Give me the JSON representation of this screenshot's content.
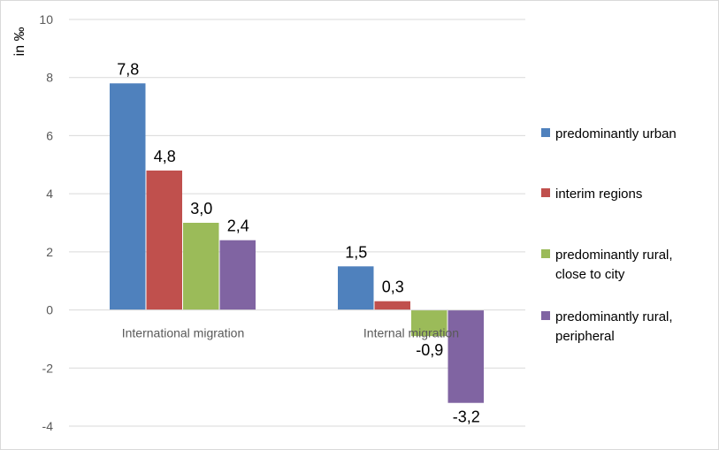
{
  "chart_data": {
    "type": "bar",
    "ylabel": "in ‰",
    "ylim": [
      -4,
      10
    ],
    "yticks": [
      -4,
      -2,
      0,
      2,
      4,
      6,
      8,
      10
    ],
    "grid": true,
    "legend_position": "right",
    "categories": [
      "International migration",
      "Internal migration"
    ],
    "series": [
      {
        "name": "predominantly urban",
        "color": "#4f81bd",
        "values": [
          7.8,
          1.5
        ],
        "labels": [
          "7,8",
          "1,5"
        ]
      },
      {
        "name": "interim regions",
        "color": "#c0504d",
        "values": [
          4.8,
          0.3
        ],
        "labels": [
          "4,8",
          "0,3"
        ]
      },
      {
        "name": "predominantly rural, close to city",
        "legend_lines": [
          "predominantly rural,",
          "close to city"
        ],
        "color": "#9bbb59",
        "values": [
          3.0,
          -0.9
        ],
        "labels": [
          "3,0",
          "-0,9"
        ]
      },
      {
        "name": "predominantly rural, peripheral",
        "legend_lines": [
          "predominantly rural,",
          "peripheral"
        ],
        "color": "#8064a2",
        "values": [
          2.4,
          -3.2
        ],
        "labels": [
          "2,4",
          "-3,2"
        ]
      }
    ]
  }
}
